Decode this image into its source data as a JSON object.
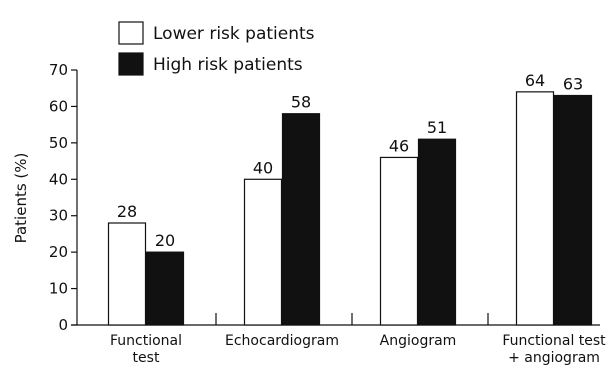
{
  "chart_data": {
    "type": "bar",
    "title": "",
    "ylabel": "Patients (%)",
    "xlabel": "",
    "ylim": [
      0,
      70
    ],
    "yticks": [
      0,
      10,
      20,
      30,
      40,
      50,
      60,
      70
    ],
    "categories": [
      [
        "Functional",
        "test"
      ],
      [
        "Echocardiogram"
      ],
      [
        "Angiogram"
      ],
      [
        "Functional test",
        "+ angiogram"
      ]
    ],
    "series": [
      {
        "name": "Lower risk patients",
        "values": [
          28,
          40,
          46,
          64
        ],
        "color": "#ffffff"
      },
      {
        "name": "High risk patients",
        "values": [
          20,
          58,
          51,
          63
        ],
        "color": "#111111"
      }
    ],
    "legend_position": "top-left",
    "grid": false
  }
}
